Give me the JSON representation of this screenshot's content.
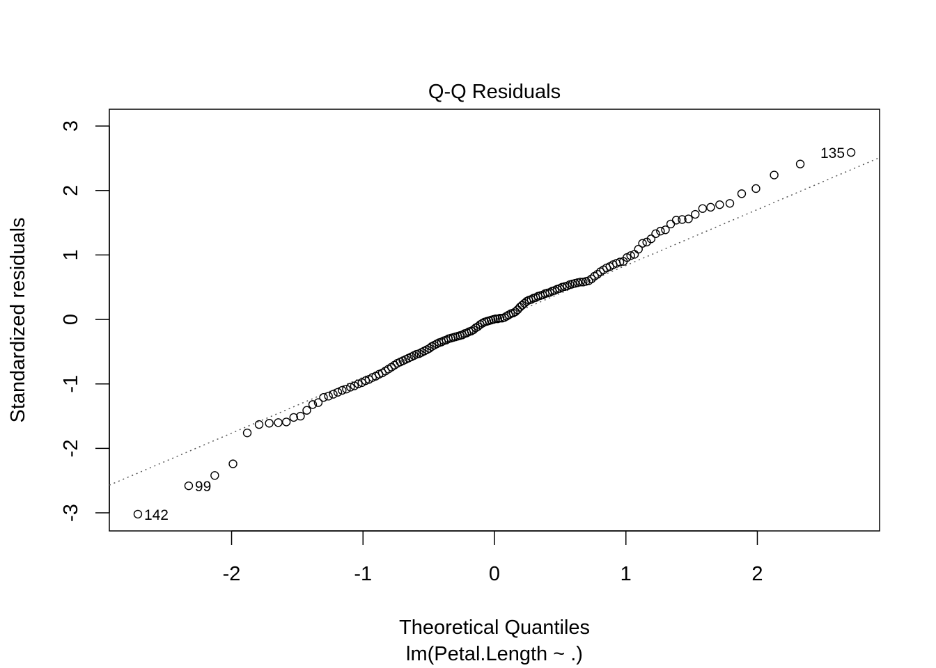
{
  "chart_data": {
    "type": "scatter",
    "title": "Q-Q Residuals",
    "xlabel": "Theoretical Quantiles",
    "subtitle": "lm(Petal.Length ~ .)",
    "ylabel": "Standardized residuals",
    "n": 150,
    "x_definition": "qnorm(ppoints(n))",
    "xlim": [
      -2.93,
      2.93
    ],
    "ylim": [
      -3.28,
      3.26
    ],
    "xticks": [
      -2,
      -1,
      0,
      1,
      2
    ],
    "xtick_labels": [
      "-2",
      "-1",
      "0",
      "1",
      "2"
    ],
    "yticks": [
      -3,
      -2,
      -1,
      0,
      1,
      2,
      3
    ],
    "ytick_labels": [
      "-3",
      "-2",
      "-1",
      "0",
      "1",
      "2",
      "3"
    ],
    "grid": false,
    "y_sorted": [
      -3.02,
      -2.58,
      -2.42,
      -2.24,
      -1.76,
      -1.63,
      -1.61,
      -1.6,
      -1.59,
      -1.52,
      -1.5,
      -1.41,
      -1.32,
      -1.29,
      -1.21,
      -1.19,
      -1.16,
      -1.13,
      -1.1,
      -1.08,
      -1.05,
      -1.03,
      -1.0,
      -0.98,
      -0.95,
      -0.93,
      -0.9,
      -0.88,
      -0.85,
      -0.83,
      -0.8,
      -0.77,
      -0.74,
      -0.71,
      -0.68,
      -0.66,
      -0.64,
      -0.62,
      -0.6,
      -0.58,
      -0.56,
      -0.54,
      -0.53,
      -0.51,
      -0.49,
      -0.47,
      -0.45,
      -0.42,
      -0.4,
      -0.38,
      -0.36,
      -0.35,
      -0.33,
      -0.32,
      -0.3,
      -0.29,
      -0.28,
      -0.27,
      -0.26,
      -0.25,
      -0.24,
      -0.22,
      -0.21,
      -0.19,
      -0.18,
      -0.16,
      -0.13,
      -0.11,
      -0.08,
      -0.06,
      -0.04,
      -0.03,
      -0.02,
      -0.01,
      0.0,
      0.01,
      0.01,
      0.02,
      0.02,
      0.03,
      0.05,
      0.07,
      0.09,
      0.1,
      0.12,
      0.15,
      0.19,
      0.22,
      0.25,
      0.28,
      0.3,
      0.31,
      0.33,
      0.34,
      0.36,
      0.37,
      0.38,
      0.4,
      0.41,
      0.42,
      0.44,
      0.45,
      0.47,
      0.48,
      0.5,
      0.51,
      0.52,
      0.54,
      0.55,
      0.56,
      0.57,
      0.58,
      0.58,
      0.59,
      0.6,
      0.63,
      0.67,
      0.7,
      0.74,
      0.77,
      0.8,
      0.82,
      0.85,
      0.87,
      0.89,
      0.9,
      0.96,
      0.99,
      1.01,
      1.09,
      1.18,
      1.2,
      1.25,
      1.33,
      1.37,
      1.39,
      1.48,
      1.54,
      1.55,
      1.56,
      1.63,
      1.72,
      1.74,
      1.78,
      1.8,
      1.95,
      2.03,
      2.24,
      2.41,
      2.59
    ],
    "reference_line": {
      "slope": 0.867,
      "intercept": -0.03,
      "style": "dotted",
      "color": "#555555"
    },
    "labeled_points": [
      {
        "index": 150,
        "label": "135",
        "side": "left"
      },
      {
        "index": 2,
        "label": "99",
        "side": "right"
      },
      {
        "index": 1,
        "label": "142",
        "side": "right"
      }
    ]
  }
}
